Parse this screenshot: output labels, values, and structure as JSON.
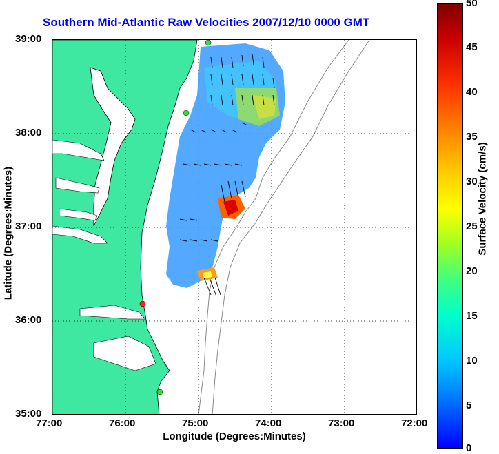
{
  "title": "Southern Mid-Atlantic Raw Velocities 2007/12/10 0000 GMT",
  "xlabel": "Longitude (Degrees:Minutes)",
  "ylabel": "Latitude (Degrees:Minutes)",
  "xticks": [
    "77:00",
    "76:00",
    "75:00",
    "74:00",
    "73:00",
    "72:00"
  ],
  "yticks": [
    "39:00",
    "38:00",
    "37:00",
    "36:00",
    "35:00"
  ],
  "colorbar": {
    "label": "Surface Velocity (cm/s)",
    "ticks": [
      "50",
      "45",
      "40",
      "35",
      "30",
      "25",
      "20",
      "15",
      "10",
      "5",
      "0"
    ],
    "min": 0,
    "max": 50
  },
  "colors": {
    "land": "#3ee8a0",
    "title": "#0000ff"
  },
  "stations": [
    {
      "color": "#33dd33"
    },
    {
      "color": "#33dd33"
    },
    {
      "color": "#ff2222"
    },
    {
      "color": "#33dd33"
    }
  ]
}
